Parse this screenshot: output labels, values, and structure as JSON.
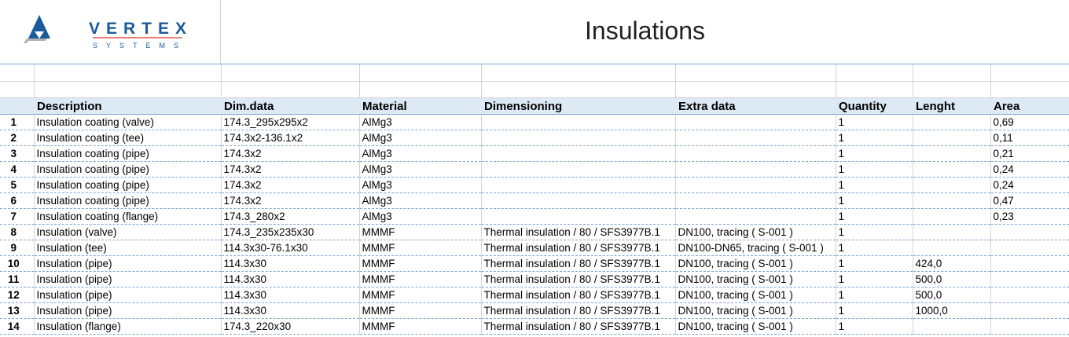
{
  "header": {
    "title": "Insulations",
    "logo_text": "VERTEX",
    "logo_sub": "SYSTEMS",
    "logo_color": "#1b5a9c",
    "logo_line": "#e8544c"
  },
  "columns": [
    "",
    "Description",
    "Dim.data",
    "Material",
    "Dimensioning",
    "Extra data",
    "Quantity",
    "Lenght",
    "Area"
  ],
  "rows": [
    [
      "1",
      "Insulation coating (valve)",
      "174.3_295x295x2",
      "AlMg3",
      "",
      "",
      "1",
      "",
      "0,69"
    ],
    [
      "2",
      "Insulation coating (tee)",
      "174.3x2-136.1x2",
      "AlMg3",
      "",
      "",
      "1",
      "",
      "0,11"
    ],
    [
      "3",
      "Insulation coating (pipe)",
      "174.3x2",
      "AlMg3",
      "",
      "",
      "1",
      "",
      "0,21"
    ],
    [
      "4",
      "Insulation coating (pipe)",
      "174.3x2",
      "AlMg3",
      "",
      "",
      "1",
      "",
      "0,24"
    ],
    [
      "5",
      "Insulation coating (pipe)",
      "174.3x2",
      "AlMg3",
      "",
      "",
      "1",
      "",
      "0,24"
    ],
    [
      "6",
      "Insulation coating (pipe)",
      "174.3x2",
      "AlMg3",
      "",
      "",
      "1",
      "",
      "0,47"
    ],
    [
      "7",
      "Insulation coating (flange)",
      "174.3_280x2",
      "AlMg3",
      "",
      "",
      "1",
      "",
      "0,23"
    ],
    [
      "8",
      "Insulation (valve)",
      "174.3_235x235x30",
      "MMMF",
      "Thermal insulation / 80 / SFS3977B.1",
      "DN100, tracing ( S-001 )",
      "1",
      "",
      ""
    ],
    [
      "9",
      "Insulation (tee)",
      "114.3x30-76.1x30",
      "MMMF",
      "Thermal insulation / 80 / SFS3977B.1",
      "DN100-DN65, tracing ( S-001 )",
      "1",
      "",
      ""
    ],
    [
      "10",
      "Insulation (pipe)",
      "114.3x30",
      "MMMF",
      "Thermal insulation / 80 / SFS3977B.1",
      "DN100, tracing ( S-001 )",
      "1",
      "424,0",
      ""
    ],
    [
      "11",
      "Insulation (pipe)",
      "114.3x30",
      "MMMF",
      "Thermal insulation / 80 / SFS3977B.1",
      "DN100, tracing ( S-001 )",
      "1",
      "500,0",
      ""
    ],
    [
      "12",
      "Insulation (pipe)",
      "114.3x30",
      "MMMF",
      "Thermal insulation / 80 / SFS3977B.1",
      "DN100, tracing ( S-001 )",
      "1",
      "500,0",
      ""
    ],
    [
      "13",
      "Insulation (pipe)",
      "114.3x30",
      "MMMF",
      "Thermal insulation / 80 / SFS3977B.1",
      "DN100, tracing ( S-001 )",
      "1",
      "1000,0",
      ""
    ],
    [
      "14",
      "Insulation (flange)",
      "174.3_220x30",
      "MMMF",
      "Thermal insulation / 80 / SFS3977B.1",
      "DN100, tracing ( S-001 )",
      "1",
      "",
      ""
    ]
  ]
}
